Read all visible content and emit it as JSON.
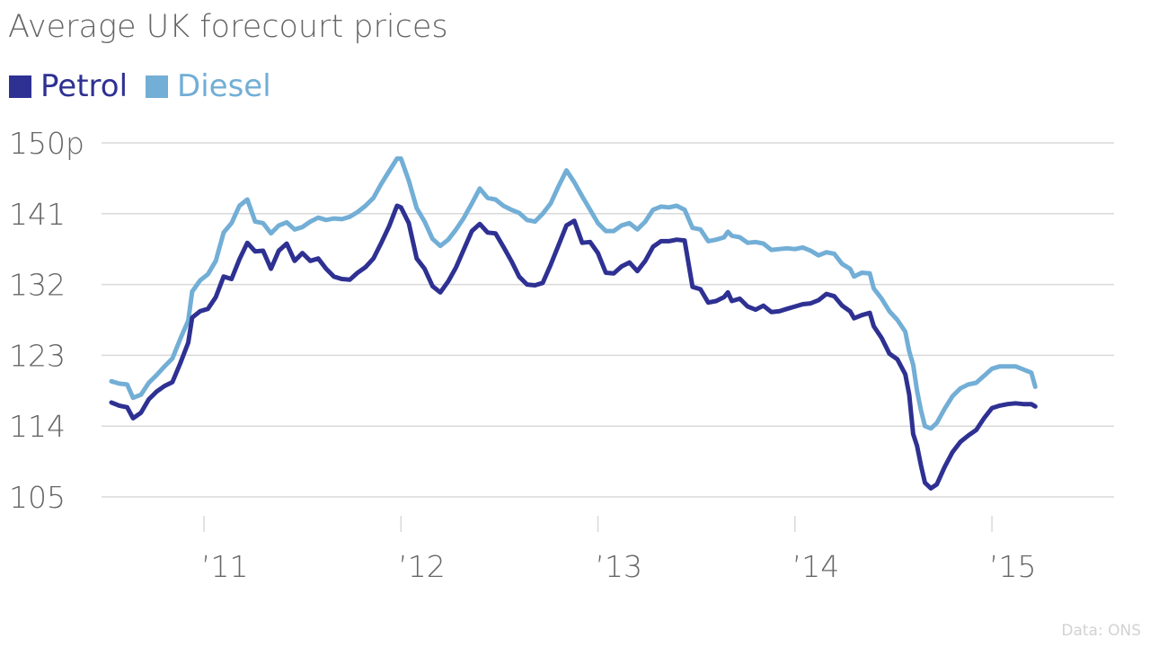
{
  "colors": {
    "petrol": "#2e3192",
    "diesel": "#72aed6",
    "grid": "#d9d9d9",
    "text": "#666666",
    "source": "#d2d2d2"
  },
  "chart_data": {
    "type": "line",
    "title": "Average UK forecourt prices",
    "legend_position": "top-left",
    "grid": true,
    "ylim": [
      105,
      150
    ],
    "y_ticks": [
      105,
      114,
      123,
      132,
      141,
      150
    ],
    "y_tick_labels": [
      "105",
      "114",
      "123",
      "132",
      "141",
      "150p"
    ],
    "x_ticks": [
      2011,
      2012,
      2013,
      2014,
      2015
    ],
    "x_tick_labels": [
      "’11",
      "’12",
      "’13",
      "’14",
      "’15"
    ],
    "xlim": [
      2010.48,
      2015.62
    ],
    "source": "Data: ONS",
    "series": [
      {
        "name": "Petrol",
        "color": "#2e3192",
        "points": [
          [
            2010.53,
            117.0
          ],
          [
            2010.57,
            116.6
          ],
          [
            2010.61,
            116.4
          ],
          [
            2010.64,
            115.0
          ],
          [
            2010.68,
            115.7
          ],
          [
            2010.72,
            117.4
          ],
          [
            2010.76,
            118.4
          ],
          [
            2010.8,
            119.1
          ],
          [
            2010.84,
            119.6
          ],
          [
            2010.88,
            122.0
          ],
          [
            2010.92,
            124.6
          ],
          [
            2010.94,
            127.8
          ],
          [
            2010.98,
            128.6
          ],
          [
            2011.02,
            128.9
          ],
          [
            2011.06,
            130.4
          ],
          [
            2011.1,
            133.0
          ],
          [
            2011.14,
            132.7
          ],
          [
            2011.18,
            135.2
          ],
          [
            2011.22,
            137.3
          ],
          [
            2011.26,
            136.2
          ],
          [
            2011.3,
            136.3
          ],
          [
            2011.34,
            134.0
          ],
          [
            2011.38,
            136.3
          ],
          [
            2011.42,
            137.2
          ],
          [
            2011.46,
            135.0
          ],
          [
            2011.5,
            136.0
          ],
          [
            2011.54,
            135.0
          ],
          [
            2011.58,
            135.3
          ],
          [
            2011.62,
            134.0
          ],
          [
            2011.66,
            133.0
          ],
          [
            2011.7,
            132.7
          ],
          [
            2011.74,
            132.6
          ],
          [
            2011.78,
            133.5
          ],
          [
            2011.82,
            134.2
          ],
          [
            2011.86,
            135.3
          ],
          [
            2011.9,
            137.3
          ],
          [
            2011.94,
            139.4
          ],
          [
            2011.98,
            142.0
          ],
          [
            2012.0,
            141.8
          ],
          [
            2012.04,
            139.8
          ],
          [
            2012.08,
            135.3
          ],
          [
            2012.12,
            134.0
          ],
          [
            2012.16,
            131.8
          ],
          [
            2012.2,
            131.0
          ],
          [
            2012.24,
            132.4
          ],
          [
            2012.28,
            134.2
          ],
          [
            2012.32,
            136.5
          ],
          [
            2012.36,
            138.8
          ],
          [
            2012.4,
            139.7
          ],
          [
            2012.44,
            138.6
          ],
          [
            2012.48,
            138.5
          ],
          [
            2012.52,
            136.8
          ],
          [
            2012.56,
            135.0
          ],
          [
            2012.6,
            133.0
          ],
          [
            2012.64,
            132.0
          ],
          [
            2012.68,
            131.9
          ],
          [
            2012.72,
            132.2
          ],
          [
            2012.76,
            134.5
          ],
          [
            2012.8,
            137.0
          ],
          [
            2012.84,
            139.5
          ],
          [
            2012.88,
            140.1
          ],
          [
            2012.92,
            137.3
          ],
          [
            2012.96,
            137.4
          ],
          [
            2013.0,
            136.0
          ],
          [
            2013.04,
            133.5
          ],
          [
            2013.08,
            133.4
          ],
          [
            2013.12,
            134.3
          ],
          [
            2013.16,
            134.8
          ],
          [
            2013.2,
            133.7
          ],
          [
            2013.24,
            135.0
          ],
          [
            2013.28,
            136.8
          ],
          [
            2013.32,
            137.5
          ],
          [
            2013.36,
            137.5
          ],
          [
            2013.4,
            137.7
          ],
          [
            2013.44,
            137.6
          ],
          [
            2013.48,
            131.7
          ],
          [
            2013.52,
            131.4
          ],
          [
            2013.56,
            129.7
          ],
          [
            2013.6,
            129.9
          ],
          [
            2013.64,
            130.4
          ],
          [
            2013.66,
            131.0
          ],
          [
            2013.68,
            129.9
          ],
          [
            2013.72,
            130.2
          ],
          [
            2013.76,
            129.2
          ],
          [
            2013.8,
            128.8
          ],
          [
            2013.84,
            129.3
          ],
          [
            2013.88,
            128.5
          ],
          [
            2013.92,
            128.6
          ],
          [
            2013.96,
            128.9
          ],
          [
            2014.0,
            129.2
          ],
          [
            2014.04,
            129.5
          ],
          [
            2014.08,
            129.6
          ],
          [
            2014.12,
            130.0
          ],
          [
            2014.16,
            130.8
          ],
          [
            2014.2,
            130.5
          ],
          [
            2014.24,
            129.3
          ],
          [
            2014.28,
            128.6
          ],
          [
            2014.3,
            127.7
          ],
          [
            2014.34,
            128.1
          ],
          [
            2014.38,
            128.4
          ],
          [
            2014.4,
            126.7
          ],
          [
            2014.44,
            125.2
          ],
          [
            2014.48,
            123.2
          ],
          [
            2014.52,
            122.5
          ],
          [
            2014.56,
            120.6
          ],
          [
            2014.58,
            118.0
          ],
          [
            2014.6,
            113.0
          ],
          [
            2014.62,
            111.5
          ],
          [
            2014.64,
            109.0
          ],
          [
            2014.66,
            106.8
          ],
          [
            2014.69,
            106.1
          ],
          [
            2014.72,
            106.6
          ],
          [
            2014.76,
            108.8
          ],
          [
            2014.8,
            110.7
          ],
          [
            2014.84,
            112.0
          ],
          [
            2014.88,
            112.8
          ],
          [
            2014.92,
            113.5
          ],
          [
            2014.96,
            115.0
          ],
          [
            2015.0,
            116.3
          ],
          [
            2015.04,
            116.6
          ],
          [
            2015.08,
            116.8
          ],
          [
            2015.12,
            116.9
          ],
          [
            2015.16,
            116.8
          ],
          [
            2015.2,
            116.8
          ],
          [
            2015.22,
            116.5
          ]
        ]
      },
      {
        "name": "Diesel",
        "color": "#72aed6",
        "points": [
          [
            2010.53,
            119.7
          ],
          [
            2010.57,
            119.4
          ],
          [
            2010.61,
            119.3
          ],
          [
            2010.64,
            117.6
          ],
          [
            2010.68,
            118.0
          ],
          [
            2010.72,
            119.5
          ],
          [
            2010.76,
            120.5
          ],
          [
            2010.8,
            121.6
          ],
          [
            2010.84,
            122.6
          ],
          [
            2010.88,
            125.1
          ],
          [
            2010.92,
            127.4
          ],
          [
            2010.94,
            131.1
          ],
          [
            2010.98,
            132.5
          ],
          [
            2011.02,
            133.3
          ],
          [
            2011.06,
            135.0
          ],
          [
            2011.1,
            138.6
          ],
          [
            2011.14,
            139.8
          ],
          [
            2011.18,
            142.0
          ],
          [
            2011.22,
            142.8
          ],
          [
            2011.26,
            140.0
          ],
          [
            2011.3,
            139.8
          ],
          [
            2011.34,
            138.5
          ],
          [
            2011.38,
            139.5
          ],
          [
            2011.42,
            139.9
          ],
          [
            2011.46,
            139.0
          ],
          [
            2011.5,
            139.3
          ],
          [
            2011.54,
            140.0
          ],
          [
            2011.58,
            140.5
          ],
          [
            2011.62,
            140.2
          ],
          [
            2011.66,
            140.4
          ],
          [
            2011.7,
            140.3
          ],
          [
            2011.74,
            140.6
          ],
          [
            2011.78,
            141.2
          ],
          [
            2011.82,
            142.0
          ],
          [
            2011.86,
            143.0
          ],
          [
            2011.9,
            144.8
          ],
          [
            2011.94,
            146.4
          ],
          [
            2011.98,
            148.0
          ],
          [
            2012.0,
            148.0
          ],
          [
            2012.04,
            145.2
          ],
          [
            2012.08,
            141.7
          ],
          [
            2012.12,
            140.0
          ],
          [
            2012.16,
            137.8
          ],
          [
            2012.2,
            136.9
          ],
          [
            2012.24,
            137.7
          ],
          [
            2012.28,
            139.0
          ],
          [
            2012.32,
            140.5
          ],
          [
            2012.36,
            142.3
          ],
          [
            2012.4,
            144.2
          ],
          [
            2012.44,
            143.0
          ],
          [
            2012.48,
            142.8
          ],
          [
            2012.52,
            142.0
          ],
          [
            2012.56,
            141.5
          ],
          [
            2012.6,
            141.1
          ],
          [
            2012.64,
            140.2
          ],
          [
            2012.68,
            140.0
          ],
          [
            2012.72,
            141.0
          ],
          [
            2012.76,
            142.3
          ],
          [
            2012.8,
            144.5
          ],
          [
            2012.84,
            146.5
          ],
          [
            2012.88,
            145.0
          ],
          [
            2012.92,
            143.2
          ],
          [
            2012.96,
            141.5
          ],
          [
            2013.0,
            139.8
          ],
          [
            2013.04,
            138.8
          ],
          [
            2013.08,
            138.8
          ],
          [
            2013.12,
            139.5
          ],
          [
            2013.16,
            139.8
          ],
          [
            2013.2,
            139.0
          ],
          [
            2013.24,
            140.0
          ],
          [
            2013.28,
            141.5
          ],
          [
            2013.32,
            141.9
          ],
          [
            2013.36,
            141.8
          ],
          [
            2013.4,
            142.0
          ],
          [
            2013.44,
            141.5
          ],
          [
            2013.48,
            139.2
          ],
          [
            2013.52,
            139.0
          ],
          [
            2013.56,
            137.5
          ],
          [
            2013.6,
            137.7
          ],
          [
            2013.64,
            138.0
          ],
          [
            2013.66,
            138.7
          ],
          [
            2013.68,
            138.2
          ],
          [
            2013.72,
            138.0
          ],
          [
            2013.76,
            137.3
          ],
          [
            2013.8,
            137.4
          ],
          [
            2013.84,
            137.2
          ],
          [
            2013.88,
            136.4
          ],
          [
            2013.92,
            136.5
          ],
          [
            2013.96,
            136.6
          ],
          [
            2014.0,
            136.5
          ],
          [
            2014.04,
            136.7
          ],
          [
            2014.08,
            136.3
          ],
          [
            2014.12,
            135.7
          ],
          [
            2014.16,
            136.1
          ],
          [
            2014.2,
            135.9
          ],
          [
            2014.24,
            134.6
          ],
          [
            2014.28,
            134.0
          ],
          [
            2014.3,
            133.0
          ],
          [
            2014.34,
            133.5
          ],
          [
            2014.38,
            133.4
          ],
          [
            2014.4,
            131.5
          ],
          [
            2014.44,
            130.2
          ],
          [
            2014.48,
            128.6
          ],
          [
            2014.52,
            127.5
          ],
          [
            2014.56,
            126.0
          ],
          [
            2014.58,
            123.5
          ],
          [
            2014.6,
            121.8
          ],
          [
            2014.62,
            118.5
          ],
          [
            2014.64,
            116.0
          ],
          [
            2014.66,
            114.0
          ],
          [
            2014.69,
            113.7
          ],
          [
            2014.72,
            114.4
          ],
          [
            2014.76,
            116.2
          ],
          [
            2014.8,
            117.8
          ],
          [
            2014.84,
            118.8
          ],
          [
            2014.88,
            119.3
          ],
          [
            2014.92,
            119.5
          ],
          [
            2014.96,
            120.4
          ],
          [
            2015.0,
            121.3
          ],
          [
            2015.04,
            121.6
          ],
          [
            2015.08,
            121.6
          ],
          [
            2015.12,
            121.6
          ],
          [
            2015.16,
            121.2
          ],
          [
            2015.2,
            120.8
          ],
          [
            2015.22,
            119.0
          ]
        ]
      }
    ]
  }
}
